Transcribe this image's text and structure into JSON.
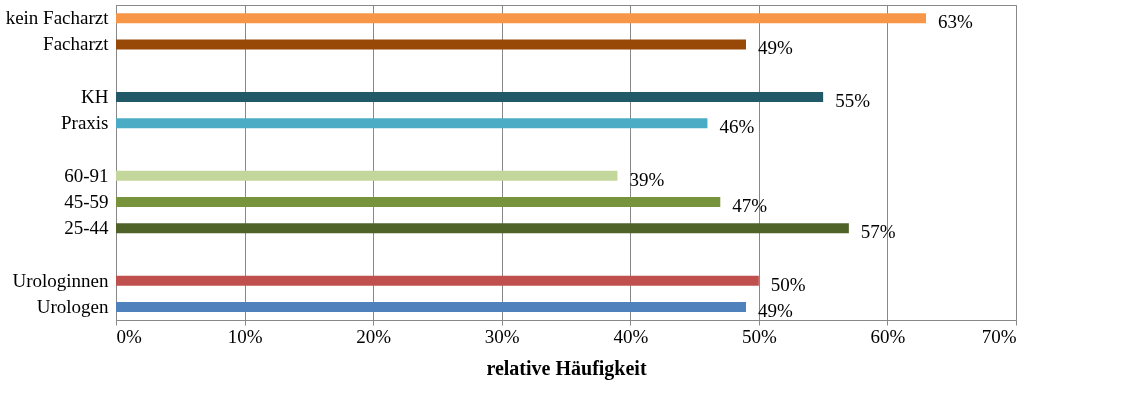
{
  "chart_data": {
    "type": "bar",
    "orientation": "horizontal",
    "xlabel": "relative Häufigkeit",
    "categories": [
      "kein Facharzt",
      "Facharzt",
      null,
      "KH",
      "Praxis",
      null,
      "60-91",
      "45-59",
      "25-44",
      null,
      "Urologinnen",
      "Urologen"
    ],
    "values": [
      63,
      49,
      null,
      55,
      46,
      null,
      39,
      47,
      57,
      null,
      50,
      49
    ],
    "value_labels": [
      "63%",
      "49%",
      null,
      "55%",
      "46%",
      null,
      "39%",
      "47%",
      "57%",
      null,
      "50%",
      "49%"
    ],
    "colors": [
      "#f79646",
      "#984807",
      null,
      "#215968",
      "#4bacc6",
      null,
      "#c3d69b",
      "#77933c",
      "#4f6228",
      null,
      "#c0504d",
      "#4f81bd"
    ],
    "xlim": [
      0,
      70
    ],
    "xticks": [
      {
        "value": 0,
        "label": "0%"
      },
      {
        "value": 10,
        "label": "10%"
      },
      {
        "value": 20,
        "label": "20%"
      },
      {
        "value": 30,
        "label": "30%"
      },
      {
        "value": 40,
        "label": "40%"
      },
      {
        "value": 50,
        "label": "50%"
      },
      {
        "value": 60,
        "label": "60%"
      },
      {
        "value": 70,
        "label": "70%"
      }
    ],
    "grid": "x"
  }
}
